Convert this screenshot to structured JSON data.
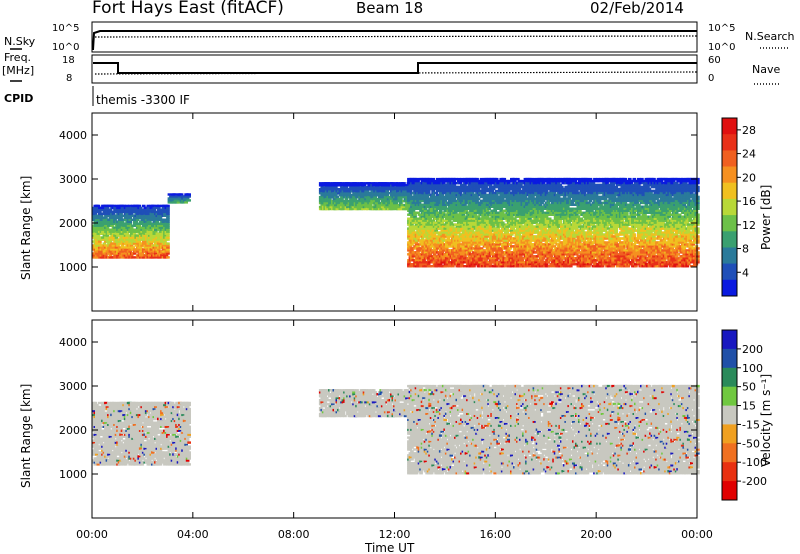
{
  "header": {
    "station": "Fort Hays East (fitACF)",
    "beam": "Beam 18",
    "date": "02/Feb/2014"
  },
  "aux": {
    "nsky_label": "N.Sky",
    "nsky_ticks": [
      "10^5",
      "10^0"
    ],
    "nsearch_label": "N.Search",
    "nsearch_ticks": [
      "10^5",
      "10^0"
    ],
    "freq_label": "Freq.",
    "freq_unit": "[MHz]",
    "freq_ticks": [
      "18",
      "8"
    ],
    "nave_label": "Nave",
    "nave_ticks": [
      "60",
      "0"
    ],
    "cpid_label": "CPID",
    "cpid_text": "themis -3300 IF"
  },
  "chart_data": [
    {
      "type": "heatmap",
      "name": "power",
      "ylabel": "Slant Range [km]",
      "xlabel": "",
      "xticks": [
        "00:00",
        "04:00",
        "08:00",
        "12:00",
        "16:00",
        "20:00",
        "00:00"
      ],
      "x_range_hours": [
        0,
        24
      ],
      "yticks": [
        1000,
        2000,
        3000,
        4000
      ],
      "ylim": [
        0,
        4500
      ],
      "colorbar": {
        "label": "Power [dB]",
        "ticks": [
          4,
          8,
          12,
          16,
          20,
          24,
          28
        ],
        "range": [
          0,
          30
        ],
        "colors": [
          "#0a1ae0",
          "#1f4fb8",
          "#2a7a9a",
          "#3aa070",
          "#6cc048",
          "#b8d838",
          "#f0c020",
          "#f59020",
          "#f06020",
          "#e83018",
          "#e01010"
        ]
      },
      "echo_bands": [
        {
          "t_start": 0.0,
          "t_end": 3.0,
          "range_low": 1200,
          "range_high": 2400,
          "peak_db": 26
        },
        {
          "t_start": 3.0,
          "t_end": 3.8,
          "range_low": 2450,
          "range_high": 2650,
          "peak_db": 10
        },
        {
          "t_start": 9.0,
          "t_end": 12.5,
          "range_low": 2300,
          "range_high": 2900,
          "peak_db": 14
        },
        {
          "t_start": 12.5,
          "t_end": 24.0,
          "range_low": 1000,
          "range_high": 3000,
          "peak_db": 28
        }
      ]
    },
    {
      "type": "heatmap",
      "name": "velocity",
      "ylabel": "Slant Range [km]",
      "xlabel": "Time UT",
      "xticks": [
        "00:00",
        "04:00",
        "08:00",
        "12:00",
        "16:00",
        "20:00",
        "00:00"
      ],
      "x_range_hours": [
        0,
        24
      ],
      "yticks": [
        1000,
        2000,
        3000,
        4000
      ],
      "ylim": [
        0,
        4500
      ],
      "colorbar": {
        "label": "Velocity [m s⁻¹]",
        "ticks": [
          200,
          100,
          50,
          15,
          -15,
          -50,
          -100,
          -200
        ],
        "colors": [
          "#1818c0",
          "#2050a8",
          "#2a8a5a",
          "#70c840",
          "#c8c8c0",
          "#f0a020",
          "#f07020",
          "#e83010",
          "#e00000"
        ]
      },
      "echo_bands": [
        {
          "t_start": 0.0,
          "t_end": 3.8,
          "range_low": 1200,
          "range_high": 2600,
          "velocity": 0
        },
        {
          "t_start": 9.0,
          "t_end": 12.5,
          "range_low": 2300,
          "range_high": 2900,
          "velocity": 0
        },
        {
          "t_start": 12.5,
          "t_end": 24.0,
          "range_low": 1000,
          "range_high": 3000,
          "velocity": 0
        }
      ]
    }
  ]
}
